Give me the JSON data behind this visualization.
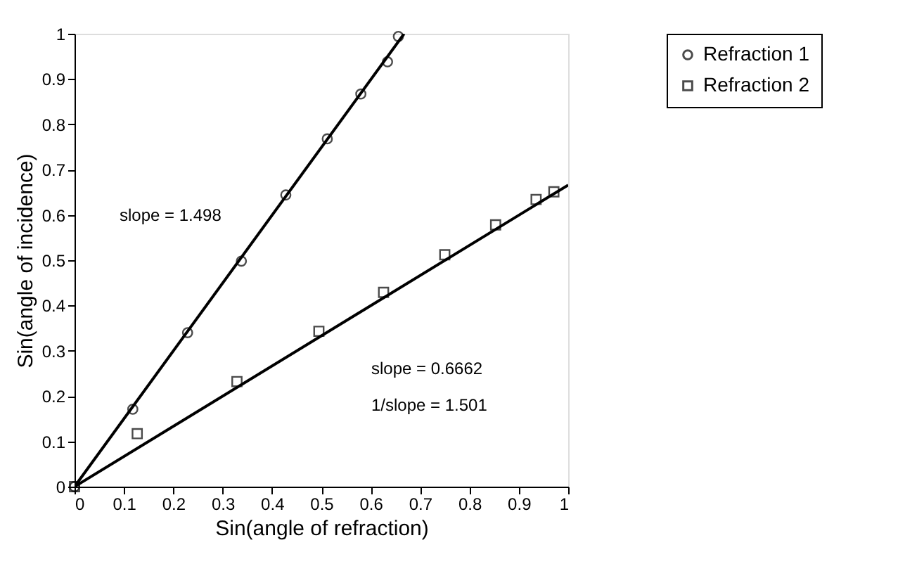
{
  "chart_data": {
    "type": "scatter",
    "xlabel": "Sin(angle of refraction)",
    "ylabel": "Sin(angle of incidence)",
    "xlim": [
      0,
      1
    ],
    "ylim": [
      0,
      1
    ],
    "xticks": [
      0,
      0.1,
      0.2,
      0.3,
      0.4,
      0.5,
      0.6,
      0.7,
      0.8,
      0.9,
      1
    ],
    "yticks": [
      0,
      0.1,
      0.2,
      0.3,
      0.4,
      0.5,
      0.6,
      0.7,
      0.8,
      0.9,
      1
    ],
    "grid": false,
    "legend": "top right",
    "series": [
      {
        "name": "Refraction 1",
        "color": "#000000",
        "marker": "circle",
        "x": [
          0,
          0.118,
          0.229,
          0.338,
          0.428,
          0.512,
          0.58,
          0.634,
          0.656
        ],
        "values": [
          0,
          0.171,
          0.34,
          0.498,
          0.644,
          0.768,
          0.867,
          0.938,
          0.994
        ]
      },
      {
        "name": "Refraction 2",
        "color": "#000000",
        "marker": "square",
        "x": [
          0,
          0.127,
          0.329,
          0.495,
          0.626,
          0.75,
          0.853,
          0.935,
          0.971
        ],
        "values": [
          0,
          0.117,
          0.232,
          0.343,
          0.429,
          0.512,
          0.578,
          0.634,
          0.651
        ]
      },
      {
        "type": "line",
        "color": "#000000",
        "x": [
          0,
          0.6676
        ],
        "values": [
          0,
          1
        ]
      },
      {
        "type": "line",
        "color": "#000000",
        "x": [
          0,
          1
        ],
        "values": [
          0,
          0.666
        ]
      }
    ],
    "annotations": [
      "slope = 1.498",
      "slope = 0.6662",
      "1/slope = 1.501"
    ]
  }
}
